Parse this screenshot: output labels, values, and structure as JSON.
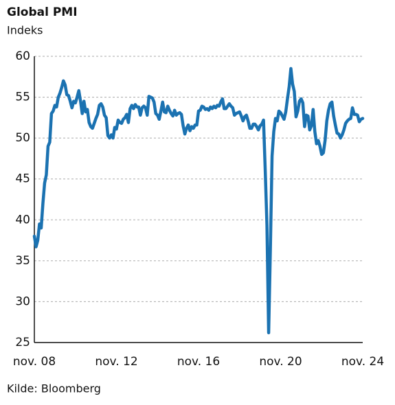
{
  "chart_data": {
    "type": "line",
    "title": "Global PMI",
    "subtitle": "Indeks",
    "source": "Kilde: Bloomberg",
    "color": "#1b72b1",
    "grid": true,
    "ylim": [
      25,
      60
    ],
    "yticks": [
      25,
      30,
      35,
      40,
      45,
      50,
      55,
      60
    ],
    "categories": [
      "nov. 08",
      null,
      null,
      null,
      null,
      null,
      null,
      null,
      null,
      null,
      null,
      null,
      null,
      null,
      null,
      null,
      null,
      null,
      null,
      null,
      null,
      null,
      null,
      null,
      null,
      null,
      null,
      null,
      null,
      null,
      null,
      null,
      null,
      null,
      null,
      null,
      null,
      null,
      null,
      null,
      null,
      null,
      null,
      null,
      null,
      null,
      null,
      null,
      "nov. 12",
      null,
      null,
      null,
      null,
      null,
      null,
      null,
      null,
      null,
      null,
      null,
      null,
      null,
      null,
      null,
      null,
      null,
      null,
      null,
      null,
      null,
      null,
      null,
      null,
      null,
      null,
      null,
      null,
      null,
      null,
      null,
      null,
      null,
      null,
      null,
      null,
      null,
      null,
      null,
      null,
      null,
      null,
      null,
      null,
      null,
      null,
      null,
      "nov. 16",
      null,
      null,
      null,
      null,
      null,
      null,
      null,
      null,
      null,
      null,
      null,
      null,
      null,
      null,
      null,
      null,
      null,
      null,
      null,
      null,
      null,
      null,
      null,
      null,
      null,
      null,
      null,
      null,
      null,
      null,
      null,
      null,
      null,
      null,
      null,
      null,
      null,
      null,
      null,
      null,
      null,
      null,
      null,
      null,
      null,
      null,
      null,
      "nov. 20",
      null,
      null,
      null,
      null,
      null,
      null,
      null,
      null,
      null,
      null,
      null,
      null,
      null,
      null,
      null,
      null,
      null,
      null,
      null,
      null,
      null,
      null,
      null,
      null,
      null,
      null,
      null,
      null,
      null,
      null,
      null,
      null,
      null,
      null,
      null,
      null,
      null,
      null,
      null,
      null,
      null,
      null,
      null,
      null,
      null,
      null,
      null,
      "nov. 24"
    ],
    "values": [
      38,
      36.7,
      37.5,
      39.5,
      39,
      42,
      44.5,
      45.5,
      49,
      49.5,
      53,
      53.3,
      54,
      53.8,
      55,
      55.5,
      56.2,
      57,
      56.5,
      55.3,
      55.2,
      54.5,
      53.7,
      54.5,
      54.3,
      55,
      55.8,
      54.5,
      53,
      54.5,
      53.2,
      53.5,
      51.9,
      51.4,
      51.2,
      51.8,
      52.4,
      52.9,
      54,
      54.2,
      53.8,
      52.8,
      52.5,
      50.3,
      50,
      50.4,
      50,
      51.3,
      51.1,
      52.2,
      51.9,
      51.8,
      52.3,
      52.5,
      52.9,
      51.9,
      53.6,
      54,
      53.6,
      54.1,
      53.8,
      53.8,
      52.8,
      53.7,
      53.9,
      53.7,
      52.8,
      55.1,
      55,
      54.9,
      54.4,
      53,
      52.8,
      52.3,
      53.3,
      54.4,
      53.2,
      53.1,
      53.9,
      53.4,
      53,
      52.7,
      53.4,
      52.8,
      53,
      53.1,
      52.9,
      51.5,
      50.5,
      51.2,
      51.6,
      50.9,
      51.4,
      51.2,
      51.6,
      51.6,
      53.3,
      53.4,
      53.9,
      53.8,
      53.5,
      53.6,
      53.4,
      53.8,
      53.6,
      53.9,
      53.7,
      54,
      53.9,
      54.4,
      54.8,
      53.6,
      53.6,
      53.9,
      54.2,
      53.9,
      53.7,
      52.8,
      53,
      53.1,
      53.2,
      52.7,
      52.1,
      52.6,
      52.8,
      52.1,
      51.2,
      51.2,
      51.7,
      51.7,
      51.4,
      51,
      51.5,
      51.7,
      52.2,
      46.1,
      39.4,
      26.2,
      36.3,
      47.8,
      50.8,
      52.4,
      52.1,
      53.3,
      53.1,
      52.7,
      52.3,
      53.2,
      54.8,
      56.3,
      58.5,
      56.6,
      55.7,
      52.6,
      53.3,
      54.5,
      54.8,
      54.3,
      51.4,
      52.8,
      52.7,
      51,
      51.5,
      53.5,
      50.8,
      49.3,
      49.7,
      49,
      48,
      48.2,
      49.7,
      52.1,
      53.4,
      54.2,
      54.4,
      52.7,
      51.6,
      50.6,
      50.5,
      50,
      50.4,
      51,
      51.8,
      52.1,
      52.3,
      52.4,
      53.7,
      52.9,
      52.9,
      52.8,
      52,
      52.3,
      52.4
    ]
  }
}
